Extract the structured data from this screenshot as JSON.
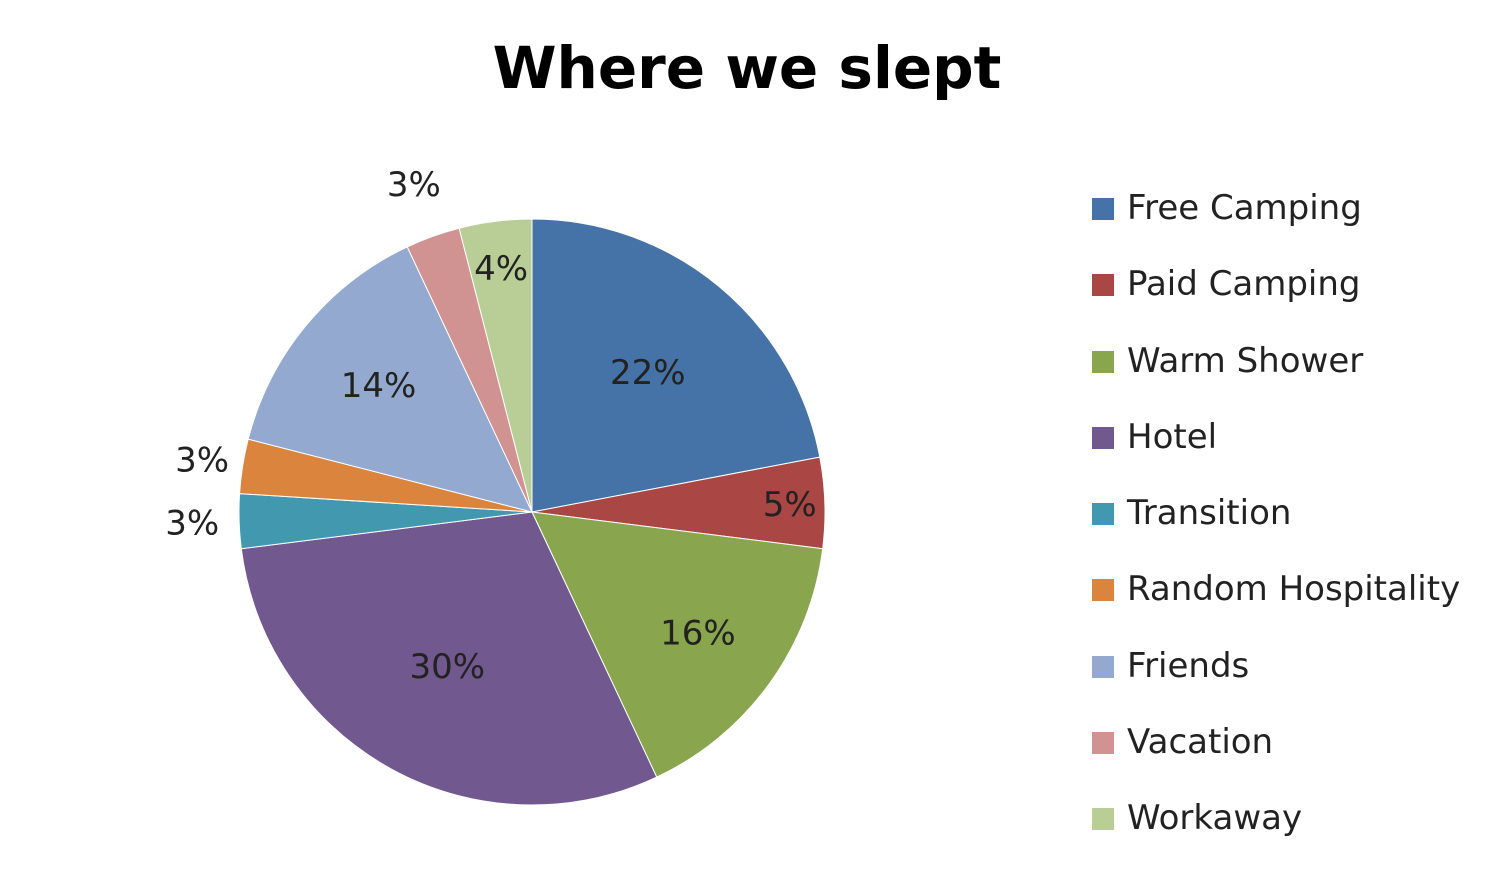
{
  "chart_data": {
    "type": "pie",
    "title": "Where we slept",
    "categories": [
      "Free Camping",
      "Paid Camping",
      "Warm Shower",
      "Hotel",
      "Transition",
      "Random Hospitality",
      "Friends",
      "Vacation",
      "Workaway"
    ],
    "values": [
      22,
      5,
      16,
      30,
      3,
      3,
      14,
      3,
      4
    ],
    "labels": [
      "22%",
      "5%",
      "16%",
      "30%",
      "3%",
      "3%",
      "14%",
      "3%",
      "4%"
    ],
    "colors": [
      "#4572A7",
      "#AA4643",
      "#89A54E",
      "#71588F",
      "#4198AF",
      "#DB843D",
      "#93A9CF",
      "#D19392",
      "#B9CD96"
    ],
    "start_angle": "12 o'clock, clockwise",
    "legend_position": "right"
  }
}
